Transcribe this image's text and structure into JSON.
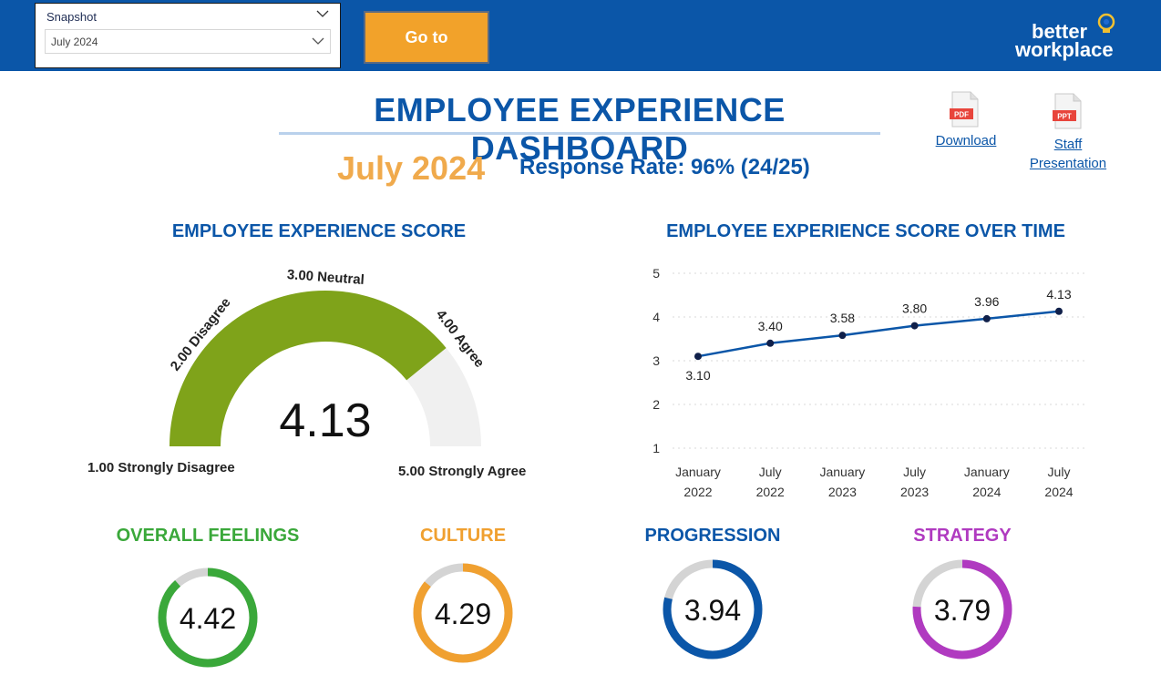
{
  "slicer": {
    "title": "Snapshot",
    "selected": "July 2024"
  },
  "goto_button": {
    "label": "Go to"
  },
  "logo": {
    "line1": "better",
    "line2": "workplace"
  },
  "header": {
    "title": "EMPLOYEE EXPERIENCE DASHBOARD",
    "month": "July 2024",
    "response_rate": "Response Rate: 96% (24/25)"
  },
  "links": {
    "download": {
      "icon_label": "PDF",
      "label": "Download"
    },
    "staff": {
      "icon_label": "PPT",
      "label_line1": "Staff",
      "label_line2": "Presentation"
    }
  },
  "gauge": {
    "title": "EMPLOYEE EXPERIENCE SCORE",
    "value": 4.13,
    "value_label": "4.13",
    "min": 1,
    "max": 5,
    "labels": {
      "min": "1.00 Strongly Disagree",
      "disagree": "2.00 Disagree",
      "neutral": "3.00 Neutral",
      "agree": "4.00 Agree",
      "max": "5.00 Strongly Agree"
    },
    "fill_color": "#7fa31a",
    "track_color": "#f0f0f0"
  },
  "chart_data": {
    "type": "line",
    "title": "EMPLOYEE EXPERIENCE SCORE OVER TIME",
    "categories": [
      [
        "January",
        "2022"
      ],
      [
        "July",
        "2022"
      ],
      [
        "January",
        "2023"
      ],
      [
        "July",
        "2023"
      ],
      [
        "January",
        "2024"
      ],
      [
        "July",
        "2024"
      ]
    ],
    "values": [
      3.1,
      3.4,
      3.58,
      3.8,
      3.96,
      4.13
    ],
    "value_labels": [
      "3.10",
      "3.40",
      "3.58",
      "3.80",
      "3.96",
      "4.13"
    ],
    "ylim": [
      1,
      5
    ],
    "yticks": [
      1,
      2,
      3,
      4,
      5
    ],
    "grid": true,
    "line_color": "#0b56a8",
    "point_color": "#10204a"
  },
  "categories": [
    {
      "title": "OVERALL FEELINGS",
      "value": 4.42,
      "label": "4.42",
      "color": "#3aa83a"
    },
    {
      "title": "CULTURE",
      "value": 4.29,
      "label": "4.29",
      "color": "#f0a030"
    },
    {
      "title": "PROGRESSION",
      "value": 3.94,
      "label": "3.94",
      "color": "#0b56a8"
    },
    {
      "title": "STRATEGY",
      "value": 3.79,
      "label": "3.79",
      "color": "#b03ac0"
    }
  ]
}
